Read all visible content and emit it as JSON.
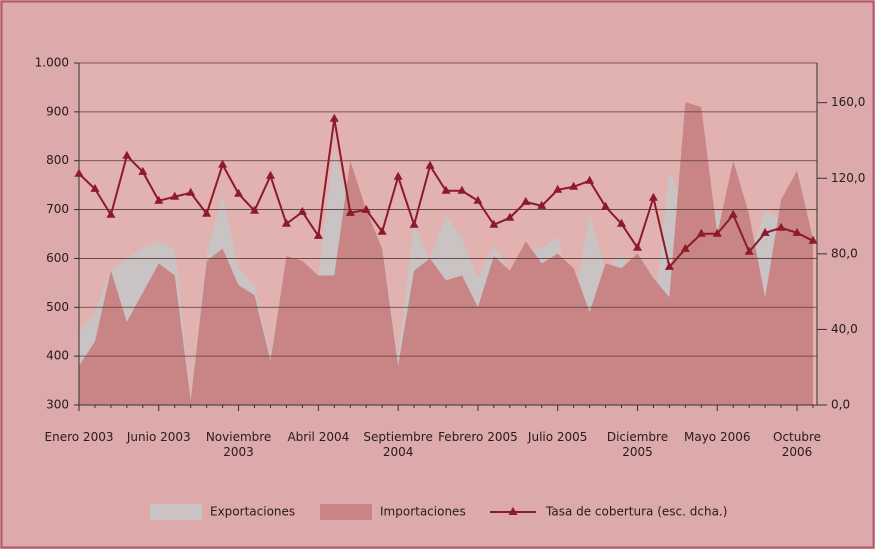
{
  "chart_data": {
    "type": "area-line",
    "categories": [
      "Enero 2003",
      null,
      null,
      null,
      null,
      "Junio 2003",
      null,
      null,
      null,
      null,
      "Noviembre 2003",
      null,
      null,
      null,
      null,
      "Abril 2004",
      null,
      null,
      null,
      null,
      "Septiembre 2004",
      null,
      null,
      null,
      null,
      "Febrero 2005",
      null,
      null,
      null,
      null,
      "Julio 2005",
      null,
      null,
      null,
      null,
      "Diciembre 2005",
      null,
      null,
      null,
      null,
      "Mayo 2006",
      null,
      null,
      null,
      null,
      "Octubre 2006",
      null
    ],
    "series": [
      {
        "name": "Exportaciones",
        "type": "area",
        "color": "#c9c3c4",
        "values": [
          450,
          490,
          575,
          600,
          620,
          635,
          620,
          320,
          610,
          730,
          580,
          545,
          400,
          605,
          595,
          565,
          820,
          710,
          680,
          620,
          400,
          670,
          600,
          690,
          640,
          560,
          625,
          575,
          620,
          620,
          645,
          500,
          690,
          575,
          610,
          560,
          470,
          780,
          700,
          580,
          700,
          640,
          600,
          700,
          680,
          700,
          620
        ]
      },
      {
        "name": "Importaciones",
        "type": "area",
        "color": "#c98585",
        "values": [
          380,
          430,
          575,
          470,
          530,
          590,
          565,
          310,
          595,
          620,
          545,
          525,
          390,
          605,
          595,
          565,
          565,
          800,
          700,
          620,
          380,
          575,
          600,
          555,
          565,
          500,
          605,
          575,
          635,
          590,
          610,
          580,
          490,
          590,
          580,
          610,
          560,
          520,
          920,
          910,
          650,
          800,
          690,
          520,
          720,
          780,
          640
        ]
      },
      {
        "name": "Tasa de cobertura (esc. dcha.)",
        "type": "line",
        "color": "#8c1a2b",
        "axis": "y2",
        "values": [
          122.4,
          114.4,
          100.7,
          131.9,
          123.4,
          108.1,
          110.2,
          112.3,
          101.2,
          127.2,
          111.8,
          102.8,
          121.3,
          95.9,
          102.2,
          89.5,
          151.5,
          101.7,
          103.3,
          91.7,
          120.8,
          95.4,
          126.6,
          113.4,
          113.4,
          108.1,
          95.4,
          99.1,
          107.5,
          105.4,
          113.9,
          115.5,
          118.7,
          104.9,
          95.9,
          83.2,
          109.7,
          73.1,
          82.6,
          90.6,
          90.6,
          100.7,
          81.1,
          91.1,
          93.8,
          91.1,
          86.9
        ]
      }
    ],
    "ylim": [
      300,
      1000
    ],
    "yticks": [
      300,
      400,
      500,
      600,
      700,
      800,
      900,
      {
        "value": 1000,
        "label": "1.000"
      }
    ],
    "y2lim": [
      0,
      181
    ],
    "y2ticks": [
      {
        "value": 0,
        "label": "0,0"
      },
      {
        "value": 40,
        "label": "40,0"
      },
      {
        "value": 80,
        "label": "80,0"
      },
      {
        "value": 120,
        "label": "120,0"
      },
      {
        "value": 160,
        "label": "160,0"
      }
    ],
    "grid": true
  }
}
